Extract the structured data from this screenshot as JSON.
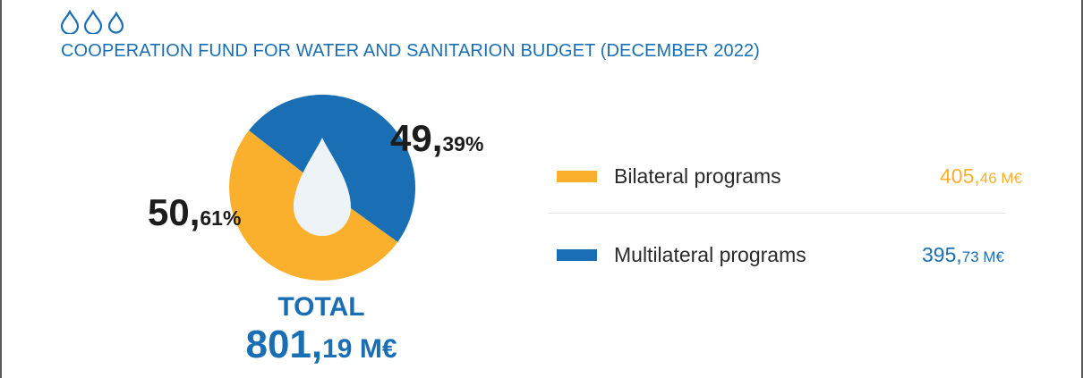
{
  "header": {
    "title": "COOPERATION FUND FOR WATER AND SANITARION BUDGET (DECEMBER 2022)",
    "icon": "water-drops-icon"
  },
  "colors": {
    "accent": "#1a6fb4",
    "bilateral": "#fbb02d",
    "multilateral": "#1a6fb4",
    "drop_fill": "#eef3f8"
  },
  "chart_data": {
    "type": "pie",
    "title": "COOPERATION FUND FOR WATER AND SANITARION BUDGET (DECEMBER 2022)",
    "unit": "M€",
    "slices": [
      {
        "name": "Bilateral programs",
        "value": 405.46,
        "percent": 50.61,
        "color": "#fbb02d"
      },
      {
        "name": "Multilateral programs",
        "value": 395.73,
        "percent": 49.39,
        "color": "#1a6fb4"
      }
    ],
    "total": 801.19
  },
  "labels": {
    "multi_pct_int": "49,",
    "multi_pct_dec": "39%",
    "bi_pct_int": "50,",
    "bi_pct_dec": "61%",
    "total_label": "TOTAL",
    "total_int": "801,",
    "total_dec": "19 M€"
  },
  "legend": [
    {
      "label": "Bilateral programs",
      "value_int": "405,",
      "value_dec": "46 M€",
      "color": "#fbb02d"
    },
    {
      "label": "Multilateral programs",
      "value_int": "395,",
      "value_dec": "73 M€",
      "color": "#1a6fb4"
    }
  ]
}
